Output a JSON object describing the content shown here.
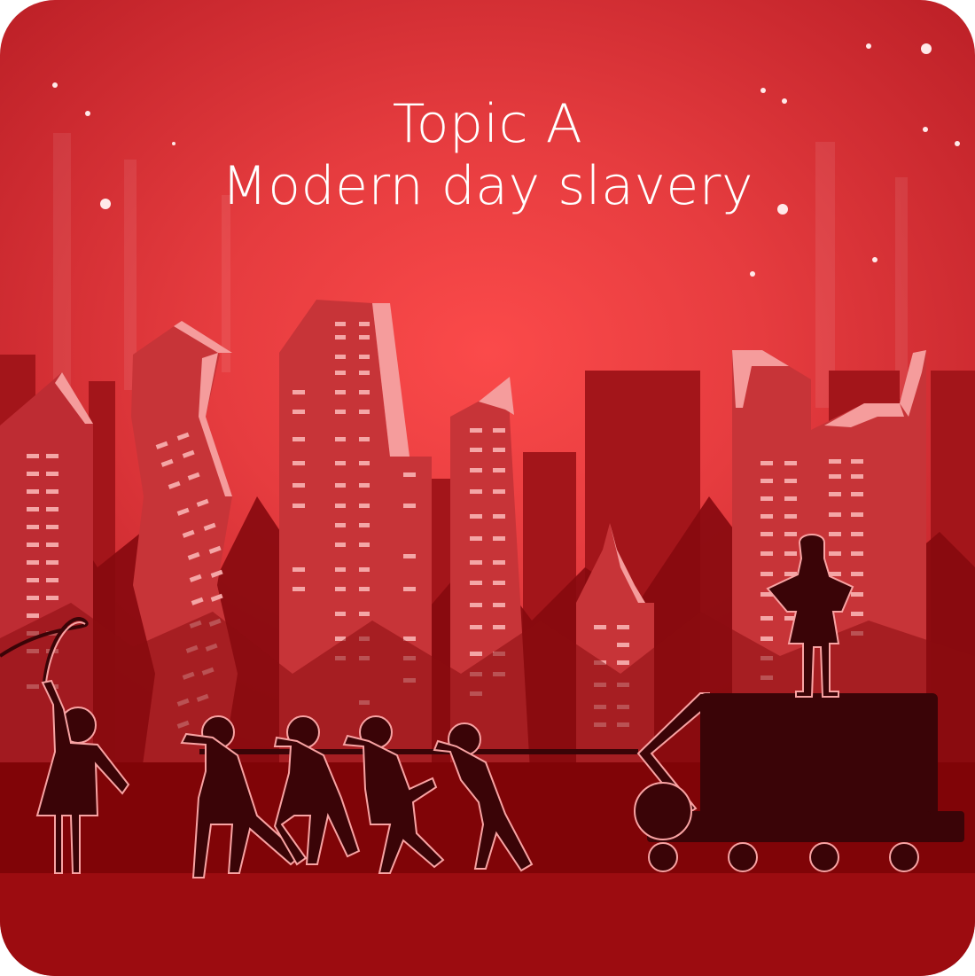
{
  "title": {
    "line1": "Topic A",
    "line2": "Modern day slavery"
  },
  "colors": {
    "background_light": "#fb4a4a",
    "background_dark": "#b91e25",
    "building_mid": "#c23036",
    "building_dark": "#9e1316",
    "silhouette": "#3a0407",
    "highlight": "#f8a3a3",
    "ground": "#9c0c10"
  },
  "icons": [
    "whip-icon",
    "person-silhouette-icon",
    "cart-icon"
  ]
}
